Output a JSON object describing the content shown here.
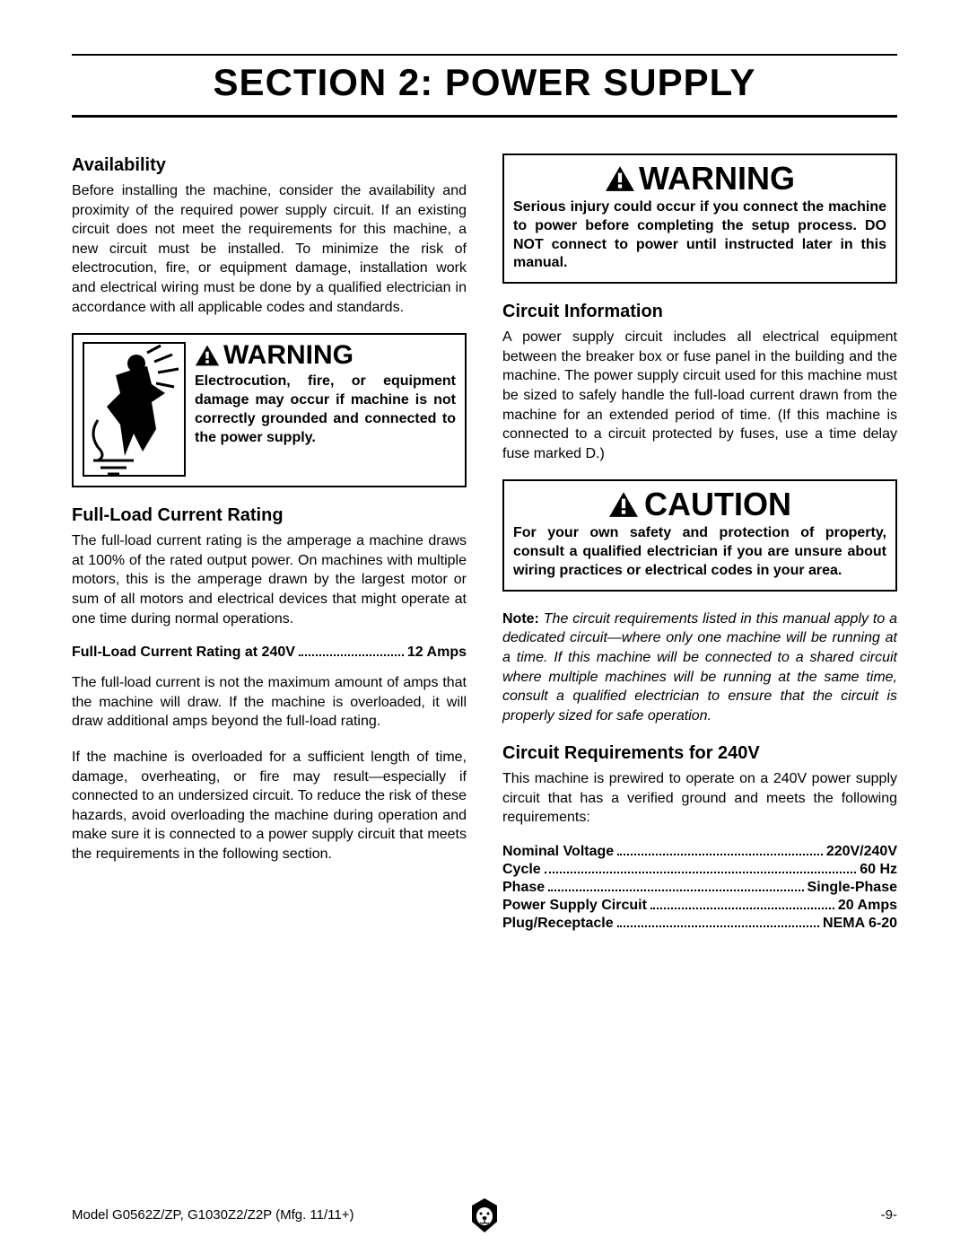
{
  "title": "SECTION 2: POWER SUPPLY",
  "left": {
    "avail_head": "Availability",
    "avail_body": "Before installing the machine, consider the availability and proximity of the required power supply circuit. If an existing circuit does not meet the requirements for this machine, a new circuit must be installed. To minimize the risk of electrocution, fire, or equipment damage, installation work and electrical wiring must be done by a qualified electrician in accordance with all applicable codes and standards.",
    "warn1_head": "WARNING",
    "warn1_body": "Electrocution, fire, or equipment damage may occur if machine is not correctly grounded and connected to the power supply.",
    "flcr_head": "Full-Load Current Rating",
    "flcr_p1": "The full-load current rating is the amperage a machine draws at 100% of the rated output power. On machines with multiple motors, this is the amperage drawn by the largest motor or sum of all motors and electrical devices that might operate at one time during normal operations.",
    "rating_label": "Full-Load Current Rating at 240V",
    "rating_value": "12 Amps",
    "flcr_p2": "The full-load current is not the maximum amount of amps that the machine will draw. If the machine is overloaded, it will draw additional amps beyond the full-load rating.",
    "flcr_p3": "If the machine is overloaded for a sufficient length of time, damage, overheating, or fire may result—especially if connected to an undersized circuit. To reduce the risk of these hazards, avoid overloading the machine during operation and make sure it is connected to a power supply circuit that meets the requirements in the following section."
  },
  "right": {
    "warn2_head": "WARNING",
    "warn2_body": "Serious injury could occur if you connect the machine to power before completing the setup process. DO NOT connect to power until instructed later in this manual.",
    "ci_head": "Circuit Information",
    "ci_body": "A power supply circuit includes all electrical equipment between the breaker box or fuse panel in the building and the machine. The power supply circuit used for this machine must be sized to safely handle the full-load current drawn from the machine for an extended period of time. (If this machine is connected to a circuit protected by fuses, use a time delay fuse marked D.)",
    "caution_head": "CAUTION",
    "caution_body": "For your own safety and protection of property, consult a qualified electrician if you are unsure about wiring practices or electrical codes in your area.",
    "note_label": "Note:",
    "note_body": "The circuit requirements listed in this manual apply to a dedicated circuit—where only one machine will be running at a time. If this machine will be connected to a shared circuit where multiple machines will be running at the same time, consult a qualified electrician to ensure that the circuit is properly sized for safe operation.",
    "creq_head": "Circuit Requirements for 240V",
    "creq_body": "This machine is prewired to operate on a 240V power supply circuit that has a verified ground and meets the following requirements:",
    "specs": [
      {
        "label": "Nominal Voltage",
        "value": "220V/240V"
      },
      {
        "label": "Cycle",
        "value": "60 Hz"
      },
      {
        "label": "Phase",
        "value": "Single-Phase"
      },
      {
        "label": "Power Supply Circuit",
        "value": "20 Amps"
      },
      {
        "label": "Plug/Receptacle",
        "value": "NEMA 6-20"
      }
    ]
  },
  "footer": {
    "left": "Model G0562Z/ZP, G1030Z2/Z2P (Mfg. 11/11+)",
    "right": "-9-"
  },
  "colors": {
    "text": "#000000",
    "bg": "#ffffff",
    "border": "#000000"
  }
}
